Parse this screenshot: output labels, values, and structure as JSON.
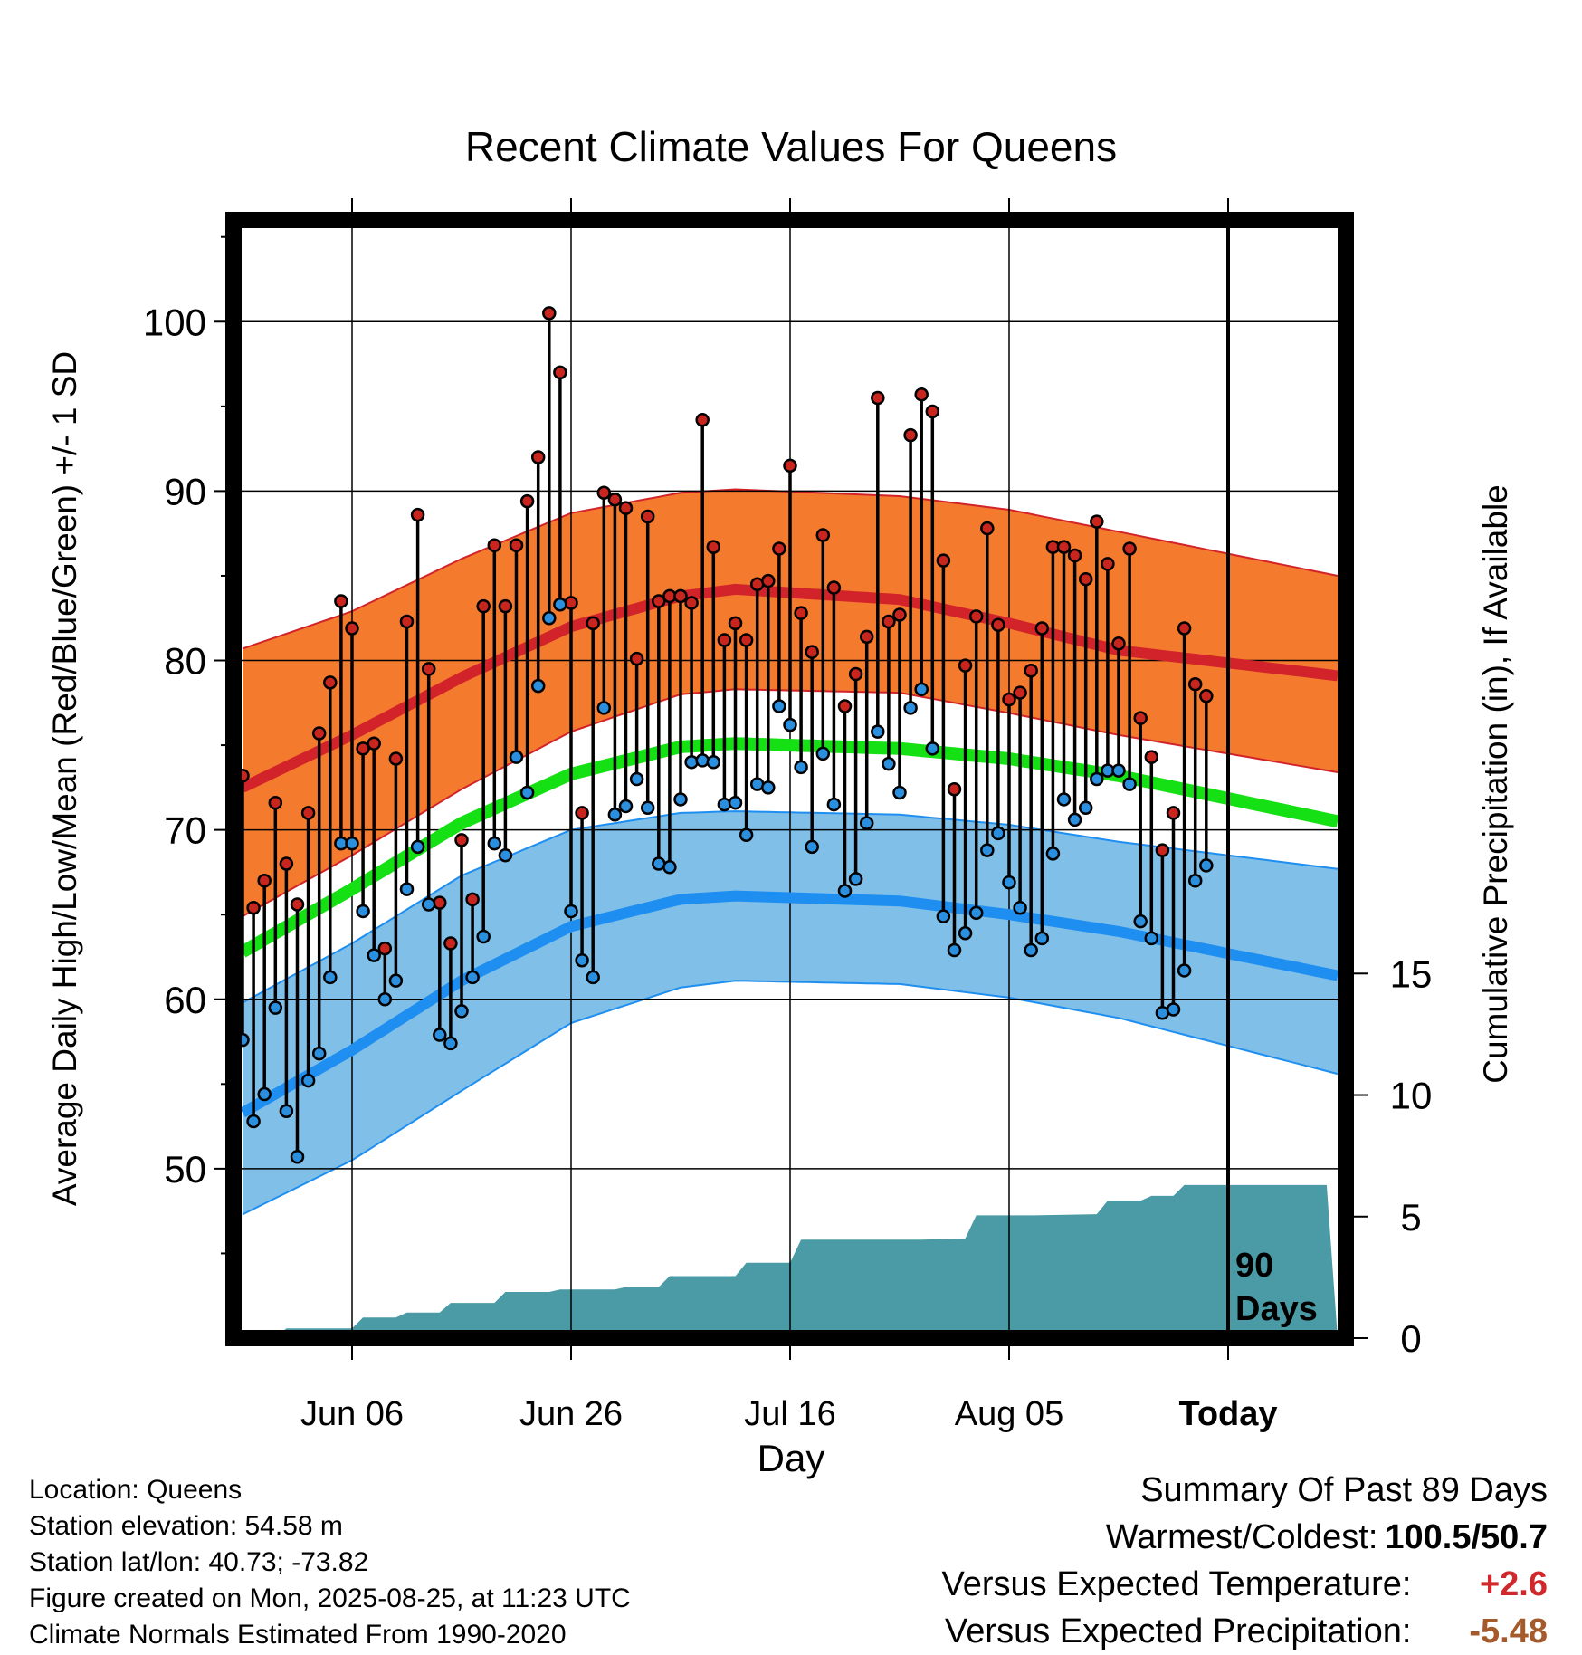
{
  "chart_data": {
    "type": "line",
    "title": "Recent Climate Values For Queens",
    "xlabel": "Day",
    "ylabel": "Average Daily High/Low/Mean (Red/Blue/Green) +/- 1 SD",
    "y2label": "Cumulative Precipitation (in), If Available",
    "xticks": [
      "Jun 06",
      "Jun 26",
      "Jul 16",
      "Aug 05",
      "Today"
    ],
    "yticks": [
      50,
      60,
      70,
      80,
      90,
      100
    ],
    "y2ticks": [
      0,
      5,
      10,
      15
    ],
    "ylim": [
      40,
      106
    ],
    "y2lim": [
      0,
      46
    ],
    "grid": true,
    "days_window": "90\nDays",
    "normals": {
      "high_mean": [
        [
          0,
          72.5
        ],
        [
          10,
          75.6
        ],
        [
          20,
          79.0
        ],
        [
          30,
          82.0
        ],
        [
          40,
          83.8
        ],
        [
          45,
          84.2
        ],
        [
          60,
          83.6
        ],
        [
          70,
          82.2
        ],
        [
          80,
          80.6
        ],
        [
          100,
          79.1
        ]
      ],
      "high_upper": [
        [
          0,
          80.7
        ],
        [
          10,
          82.9
        ],
        [
          20,
          86.0
        ],
        [
          30,
          88.7
        ],
        [
          40,
          89.9
        ],
        [
          45,
          90.1
        ],
        [
          60,
          89.7
        ],
        [
          70,
          88.9
        ],
        [
          80,
          87.6
        ],
        [
          100,
          85.0
        ]
      ],
      "high_lower": [
        [
          0,
          64.9
        ],
        [
          10,
          68.5
        ],
        [
          20,
          72.4
        ],
        [
          30,
          75.8
        ],
        [
          40,
          78.0
        ],
        [
          45,
          78.3
        ],
        [
          60,
          78.1
        ],
        [
          70,
          76.9
        ],
        [
          80,
          75.6
        ],
        [
          100,
          73.4
        ]
      ],
      "mean": [
        [
          0,
          62.8
        ],
        [
          10,
          66.5
        ],
        [
          20,
          70.4
        ],
        [
          30,
          73.3
        ],
        [
          40,
          74.9
        ],
        [
          45,
          75.1
        ],
        [
          60,
          74.8
        ],
        [
          70,
          74.2
        ],
        [
          80,
          73.2
        ],
        [
          100,
          70.5
        ]
      ],
      "low_mean": [
        [
          0,
          53.3
        ],
        [
          10,
          57.0
        ],
        [
          20,
          61.1
        ],
        [
          30,
          64.3
        ],
        [
          40,
          65.9
        ],
        [
          45,
          66.1
        ],
        [
          60,
          65.8
        ],
        [
          70,
          65.0
        ],
        [
          80,
          64.0
        ],
        [
          100,
          61.4
        ]
      ],
      "low_upper": [
        [
          0,
          59.8
        ],
        [
          10,
          63.3
        ],
        [
          20,
          67.3
        ],
        [
          30,
          70.0
        ],
        [
          40,
          71.0
        ],
        [
          45,
          71.1
        ],
        [
          60,
          70.9
        ],
        [
          70,
          70.3
        ],
        [
          80,
          69.3
        ],
        [
          100,
          67.7
        ]
      ],
      "low_lower": [
        [
          0,
          47.3
        ],
        [
          10,
          50.5
        ],
        [
          20,
          54.6
        ],
        [
          30,
          58.6
        ],
        [
          40,
          60.7
        ],
        [
          45,
          61.1
        ],
        [
          60,
          60.9
        ],
        [
          70,
          60.1
        ],
        [
          80,
          58.9
        ],
        [
          100,
          55.6
        ]
      ]
    },
    "daily_high": [
      73.2,
      65.4,
      67.0,
      71.6,
      68.0,
      65.6,
      71.0,
      75.7,
      78.7,
      83.5,
      81.9,
      74.8,
      75.1,
      63.0,
      74.2,
      82.3,
      88.6,
      79.5,
      65.7,
      63.3,
      69.4,
      65.9,
      83.2,
      86.8,
      83.2,
      86.8,
      89.4,
      92.0,
      100.5,
      97.0,
      83.4,
      71.0,
      82.2,
      89.9,
      89.5,
      89.0,
      80.1,
      88.5,
      83.5,
      83.8,
      83.8,
      83.4,
      94.2,
      86.7,
      81.2,
      82.2,
      81.2,
      84.5,
      84.7,
      86.6,
      91.5,
      82.8,
      80.5,
      87.4,
      84.3,
      77.3,
      79.2,
      81.4,
      95.5,
      82.3,
      82.7,
      93.3,
      95.7,
      94.7,
      85.9,
      72.4,
      79.7,
      82.6,
      87.8,
      82.1,
      77.7,
      78.1,
      79.4,
      81.9,
      86.7,
      86.7,
      86.2,
      84.8,
      88.2,
      85.7,
      81.0,
      86.6,
      76.6,
      74.3,
      68.8,
      71.0,
      81.9,
      78.6,
      77.9
    ],
    "daily_low": [
      57.6,
      52.8,
      54.4,
      59.5,
      53.4,
      50.7,
      55.2,
      56.8,
      61.3,
      69.2,
      69.2,
      65.2,
      62.6,
      60.0,
      61.1,
      66.5,
      69.0,
      65.6,
      57.9,
      57.4,
      59.3,
      61.3,
      63.7,
      69.2,
      68.5,
      74.3,
      72.2,
      78.5,
      82.5,
      83.3,
      65.2,
      62.3,
      61.3,
      77.2,
      70.9,
      71.4,
      73.0,
      71.3,
      68.0,
      67.8,
      71.8,
      74.0,
      74.1,
      74.0,
      71.5,
      71.6,
      69.7,
      72.7,
      72.5,
      77.3,
      76.2,
      73.7,
      69.0,
      74.5,
      71.5,
      66.4,
      67.1,
      70.4,
      75.8,
      73.9,
      72.2,
      77.2,
      78.3,
      74.8,
      64.9,
      62.9,
      63.9,
      65.1,
      68.8,
      69.8,
      66.9,
      65.4,
      62.9,
      63.6,
      68.6,
      71.8,
      70.6,
      71.3,
      73.0,
      73.5,
      73.5,
      72.7,
      64.6,
      63.6,
      59.2,
      59.4,
      61.7,
      67.0,
      67.9
    ],
    "cumulative_precip": [
      [
        0,
        0.0
      ],
      [
        3,
        0.0
      ],
      [
        4,
        0.4
      ],
      [
        10,
        0.4
      ],
      [
        11,
        0.85
      ],
      [
        14,
        0.85
      ],
      [
        15,
        1.05
      ],
      [
        18,
        1.05
      ],
      [
        19,
        1.45
      ],
      [
        23,
        1.45
      ],
      [
        24,
        1.9
      ],
      [
        28,
        1.9
      ],
      [
        29,
        2.0
      ],
      [
        34,
        2.0
      ],
      [
        35,
        2.1
      ],
      [
        38,
        2.1
      ],
      [
        39,
        2.55
      ],
      [
        45,
        2.55
      ],
      [
        46,
        3.1
      ],
      [
        50,
        3.1
      ],
      [
        51,
        4.05
      ],
      [
        62,
        4.05
      ],
      [
        66,
        4.1
      ],
      [
        67,
        5.05
      ],
      [
        72,
        5.05
      ],
      [
        78,
        5.1
      ],
      [
        79,
        5.65
      ],
      [
        82,
        5.65
      ],
      [
        83,
        5.85
      ],
      [
        85,
        5.85
      ],
      [
        86,
        6.3
      ],
      [
        89,
        6.3
      ],
      [
        99,
        6.3
      ]
    ]
  },
  "info": {
    "location": "Location: Queens",
    "elevation": "Station elevation: 54.58 m",
    "latlon": "Station lat/lon: 40.73; -73.82",
    "created": "Figure created on Mon, 2025-08-25, at 11:23 UTC",
    "normals": "Climate Normals Estimated From 1990-2020"
  },
  "summary": {
    "heading": "Summary Of Past 89 Days",
    "warm_cold_label": "Warmest/Coldest:",
    "warm_cold_value": "100.5/50.7",
    "temp_label": "Versus Expected Temperature:",
    "temp_value": "+2.6",
    "precip_label": "Versus Expected Precipitation:",
    "precip_value": "-5.48"
  },
  "colors": {
    "high_band": "#f47a2e",
    "high_line": "#d2232a",
    "low_band": "#80bfe8",
    "low_line": "#1e8ff0",
    "mean_line": "#14e014",
    "precip": "#4a9ba5",
    "high_dot": "#c8251f",
    "low_dot": "#2b8fe0",
    "temp_value": "#d0282b",
    "precip_value": "#a55a2c"
  }
}
